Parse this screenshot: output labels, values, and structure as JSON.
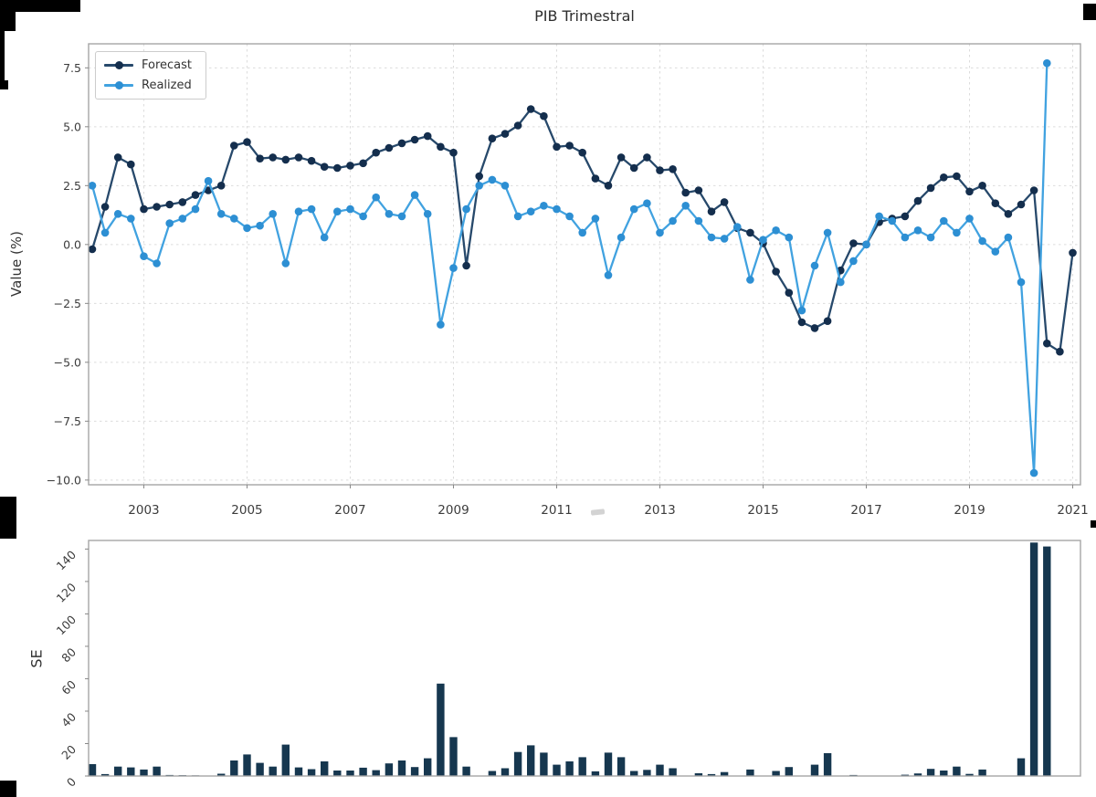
{
  "window": {
    "title": "PIB Trimestral"
  },
  "chart_data": [
    {
      "type": "line",
      "title": "PIB Trimestral",
      "ylabel": "Value (%)",
      "x_unit": "year-quarterly",
      "x_start": 2002.0,
      "x_step": 0.25,
      "xlim": [
        2001.93,
        2021.15
      ],
      "ylim": [
        -10.2,
        8.52
      ],
      "yticks": [
        7.5,
        5.0,
        2.5,
        0.0,
        -2.5,
        -5.0,
        -7.5,
        -10.0
      ],
      "xticks": [
        2003,
        2005,
        2007,
        2009,
        2011,
        2013,
        2015,
        2017,
        2019,
        2021
      ],
      "grid": true,
      "grid_color": "#dcdcdc",
      "spine_color": "#a6a6a6",
      "tick_text_color": "#3c3c3c",
      "legend_position": "upper-left",
      "series": [
        {
          "name": "Forecast",
          "line_color": "#27496b",
          "marker_color": "#142e4d",
          "values": [
            -0.2,
            1.6,
            3.7,
            3.4,
            1.5,
            1.6,
            1.7,
            1.8,
            2.1,
            2.3,
            2.5,
            4.2,
            4.35,
            3.65,
            3.7,
            3.6,
            3.7,
            3.55,
            3.3,
            3.25,
            3.35,
            3.45,
            3.9,
            4.1,
            4.3,
            4.45,
            4.6,
            4.15,
            3.9,
            -0.9,
            2.9,
            4.5,
            4.7,
            5.05,
            5.75,
            5.45,
            4.15,
            4.2,
            3.9,
            2.8,
            2.5,
            3.7,
            3.25,
            3.7,
            3.15,
            3.2,
            2.2,
            2.3,
            1.4,
            1.8,
            0.7,
            0.5,
            0.05,
            -1.15,
            -2.05,
            -3.3,
            -3.55,
            -3.25,
            -1.1,
            0.05,
            0.0,
            0.95,
            1.1,
            1.2,
            1.85,
            2.4,
            2.85,
            2.9,
            2.25,
            2.5,
            1.75,
            1.3,
            1.7,
            2.3,
            -4.2,
            -4.55,
            -0.35
          ]
        },
        {
          "name": "Realized",
          "line_color": "#41a2e0",
          "marker_color": "#2d8fd3",
          "values": [
            2.5,
            0.5,
            1.3,
            1.1,
            -0.5,
            -0.8,
            0.9,
            1.1,
            1.5,
            2.7,
            1.3,
            1.1,
            0.7,
            0.8,
            1.3,
            -0.8,
            1.4,
            1.5,
            0.3,
            1.4,
            1.5,
            1.2,
            2.0,
            1.3,
            1.2,
            2.1,
            1.3,
            -3.4,
            -1.0,
            1.5,
            2.5,
            2.75,
            2.5,
            1.2,
            1.4,
            1.65,
            1.5,
            1.2,
            0.5,
            1.1,
            -1.3,
            0.3,
            1.5,
            1.75,
            0.5,
            1.0,
            1.65,
            1.0,
            0.3,
            0.25,
            0.75,
            -1.5,
            0.2,
            0.6,
            0.3,
            -2.8,
            -0.9,
            0.5,
            -1.6,
            -0.7,
            0.0,
            1.2,
            1.0,
            0.3,
            0.6,
            0.3,
            1.0,
            0.5,
            1.1,
            0.15,
            -0.3,
            0.3,
            -1.6,
            -9.7,
            7.7,
            null,
            null
          ]
        }
      ]
    },
    {
      "type": "bar",
      "ylabel": "SE",
      "x_start": 2002.0,
      "x_step": 0.25,
      "xlim": [
        2001.93,
        2021.15
      ],
      "ylim": [
        0,
        145.3
      ],
      "yticks": [
        0,
        20,
        40,
        60,
        80,
        100,
        120,
        140
      ],
      "grid": false,
      "bar_color": "#16374f",
      "spine_color": "#a6a6a6",
      "tick_text_color": "#3c3c3c",
      "values": [
        7.3,
        1.2,
        5.8,
        5.3,
        4.0,
        5.8,
        0.6,
        0.5,
        0.4,
        0.2,
        1.4,
        9.6,
        13.3,
        8.1,
        5.8,
        19.4,
        5.3,
        4.2,
        9.0,
        3.4,
        3.4,
        5.1,
        3.6,
        7.8,
        9.6,
        5.5,
        10.9,
        57.0,
        24.0,
        5.8,
        0.2,
        3.1,
        4.8,
        14.8,
        18.9,
        14.4,
        7.0,
        9.0,
        11.6,
        2.9,
        14.4,
        11.6,
        3.1,
        3.8,
        7.0,
        4.8,
        0.3,
        1.7,
        1.2,
        2.4,
        0.1,
        4.0,
        0.1,
        3.1,
        5.5,
        0.3,
        7.0,
        14.1,
        0.3,
        0.6,
        0.1,
        0.1,
        0.1,
        0.8,
        1.6,
        4.4,
        3.4,
        5.8,
        1.3,
        4.0,
        0.2,
        0.1,
        10.9,
        144.0,
        141.6,
        null,
        null
      ]
    }
  ]
}
